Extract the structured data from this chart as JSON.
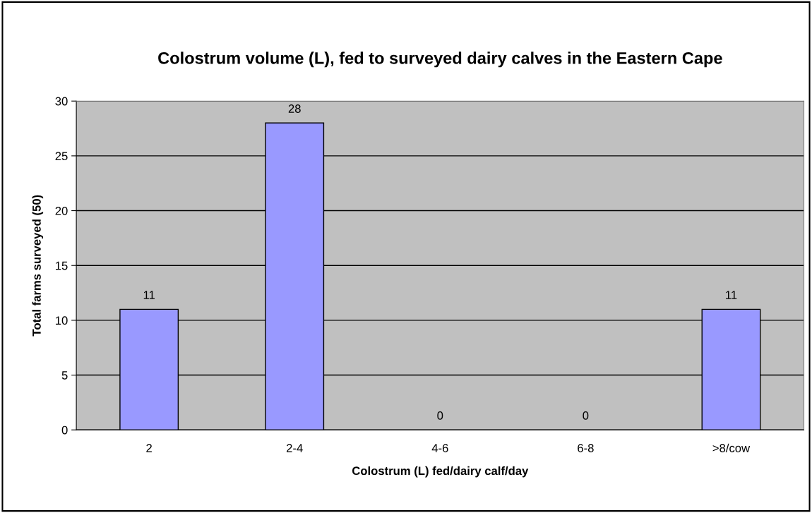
{
  "chart_data": {
    "type": "bar",
    "title": "Colostrum volume (L), fed to surveyed dairy calves in the Eastern Cape",
    "xlabel": "Colostrum (L) fed/dairy calf/day",
    "ylabel": "Total farms surveyed (50)",
    "categories": [
      "2",
      "2-4",
      "4-6",
      "6-8",
      ">8/cow"
    ],
    "values": [
      11,
      28,
      0,
      0,
      11
    ],
    "color": "#9999ff",
    "ylim": [
      0,
      30
    ],
    "yticks": [
      0,
      5,
      10,
      15,
      20,
      25,
      30
    ],
    "grid": "y",
    "data_labels": true,
    "legend": false
  }
}
